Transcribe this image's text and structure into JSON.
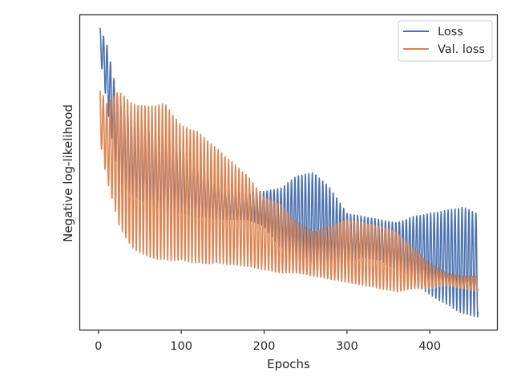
{
  "chart_data": {
    "type": "line",
    "xlabel": "Epochs",
    "ylabel": "Negative log-likelihood",
    "xlim": [
      -22,
      481
    ],
    "ylim": [
      0,
      1
    ],
    "x_ticks": [
      0,
      100,
      200,
      300,
      400
    ],
    "y_ticks_shown": false,
    "grid": false,
    "legend_position": "top-right",
    "series": [
      {
        "name": "Loss",
        "color": "#4c72b0",
        "x": [
          0,
          460
        ],
        "envelope": {
          "epochs": [
            2,
            10,
            25,
            40,
            60,
            80,
            100,
            120,
            150,
            180,
            200,
            220,
            240,
            260,
            280,
            300,
            320,
            340,
            360,
            380,
            400,
            420,
            440,
            458
          ],
          "upper": [
            0.96,
            0.91,
            0.72,
            0.67,
            0.64,
            0.61,
            0.58,
            0.52,
            0.45,
            0.44,
            0.44,
            0.45,
            0.49,
            0.5,
            0.45,
            0.37,
            0.36,
            0.35,
            0.34,
            0.36,
            0.37,
            0.38,
            0.39,
            0.37
          ],
          "lower": [
            0.87,
            0.72,
            0.47,
            0.43,
            0.4,
            0.38,
            0.37,
            0.36,
            0.35,
            0.35,
            0.33,
            0.26,
            0.22,
            0.19,
            0.2,
            0.21,
            0.23,
            0.22,
            0.19,
            0.15,
            0.11,
            0.08,
            0.05,
            0.04
          ]
        },
        "oscillation_period_epochs": 4.2
      },
      {
        "name": "Val. loss",
        "color": "#dd8452",
        "x": [
          0,
          460
        ],
        "envelope": {
          "epochs": [
            2,
            10,
            25,
            40,
            60,
            80,
            100,
            120,
            150,
            180,
            200,
            220,
            240,
            260,
            280,
            300,
            320,
            340,
            360,
            380,
            400,
            420,
            440,
            458
          ],
          "upper": [
            0.77,
            0.72,
            0.76,
            0.72,
            0.71,
            0.72,
            0.65,
            0.63,
            0.56,
            0.49,
            0.42,
            0.4,
            0.34,
            0.31,
            0.33,
            0.35,
            0.34,
            0.33,
            0.31,
            0.26,
            0.21,
            0.18,
            0.17,
            0.17
          ],
          "lower": [
            0.6,
            0.48,
            0.33,
            0.26,
            0.23,
            0.22,
            0.22,
            0.21,
            0.21,
            0.2,
            0.19,
            0.18,
            0.18,
            0.17,
            0.16,
            0.15,
            0.14,
            0.13,
            0.12,
            0.13,
            0.13,
            0.14,
            0.13,
            0.12
          ]
        },
        "oscillation_period_epochs": 4.2
      }
    ]
  }
}
